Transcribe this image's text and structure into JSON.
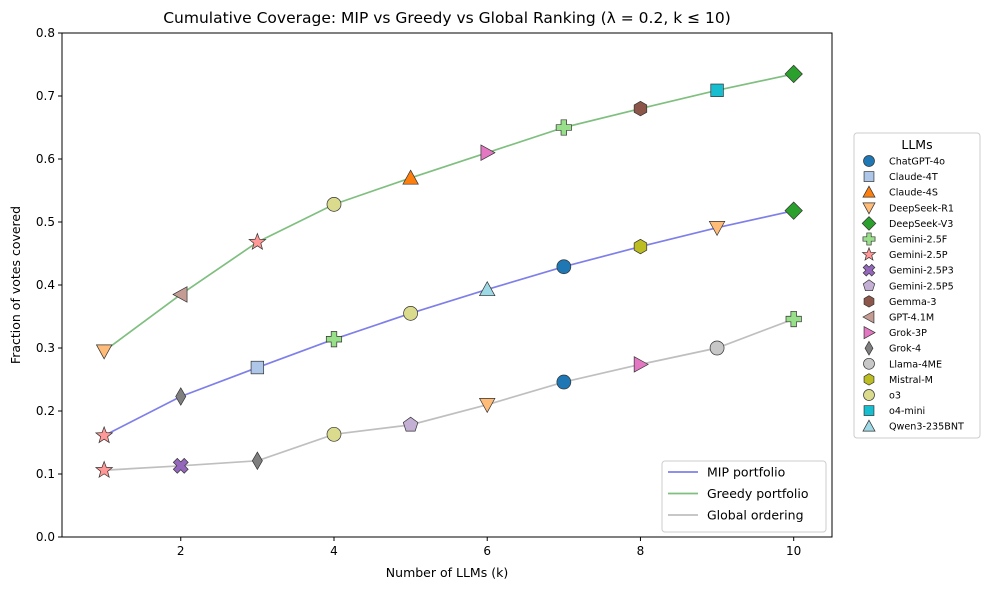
{
  "chart_data": {
    "type": "line",
    "title": "Cumulative Coverage: MIP vs Greedy vs Global Ranking (λ = 0.2, k ≤ 10)",
    "xlabel": "Number of LLMs (k)",
    "ylabel": "Fraction of votes covered",
    "xlim": [
      0.45,
      10.5
    ],
    "ylim": [
      0.0,
      0.8
    ],
    "xticks": [
      2,
      4,
      6,
      8,
      10
    ],
    "yticks": [
      0.0,
      0.1,
      0.2,
      0.3,
      0.4,
      0.5,
      0.6,
      0.7,
      0.8
    ],
    "ytick_labels": [
      "0.0",
      "0.1",
      "0.2",
      "0.3",
      "0.4",
      "0.5",
      "0.6",
      "0.7",
      "0.8"
    ],
    "grid": false,
    "series": [
      {
        "name": "MIP portfolio",
        "color": "#7f7fea",
        "x": [
          1,
          2,
          3,
          4,
          5,
          6,
          7,
          8,
          9,
          10
        ],
        "y": [
          0.161,
          0.223,
          0.269,
          0.314,
          0.355,
          0.393,
          0.429,
          0.461,
          0.491,
          0.518
        ],
        "models": [
          "Gemini-2.5P",
          "Grok-4",
          "Claude-4T",
          "Gemini-2.5F",
          "o3",
          "Qwen3-235BNT",
          "ChatGPT-4o",
          "Mistral-M",
          "DeepSeek-R1",
          "DeepSeek-V3"
        ]
      },
      {
        "name": "Greedy portfolio",
        "color": "#7fbf7f",
        "x": [
          1,
          2,
          3,
          4,
          5,
          6,
          7,
          8,
          9,
          10
        ],
        "y": [
          0.295,
          0.385,
          0.468,
          0.528,
          0.57,
          0.61,
          0.65,
          0.68,
          0.709,
          0.735
        ],
        "models": [
          "DeepSeek-R1",
          "GPT-4.1M",
          "Gemini-2.5P",
          "o3",
          "Claude-4S",
          "Grok-3P",
          "Gemini-2.5F",
          "Gemma-3",
          "o4-mini",
          "DeepSeek-V3"
        ]
      },
      {
        "name": "Global ordering",
        "color": "#bfbfbf",
        "x": [
          1,
          2,
          3,
          4,
          5,
          6,
          7,
          8,
          9,
          10
        ],
        "y": [
          0.106,
          0.113,
          0.121,
          0.163,
          0.178,
          0.21,
          0.246,
          0.274,
          0.3,
          0.346
        ],
        "models": [
          "Gemini-2.5P",
          "Gemini-2.5P3",
          "Grok-4",
          "o3",
          "Gemini-2.5P5",
          "DeepSeek-R1",
          "ChatGPT-4o",
          "Grok-3P",
          "Llama-4ME",
          "Gemini-2.5F"
        ]
      }
    ],
    "series_legend_placement": "lower-right",
    "llm_legend": {
      "title": "LLMs",
      "placement": "outside-right",
      "items": [
        {
          "name": "ChatGPT-4o",
          "color": "#1f77b4",
          "marker": "circle"
        },
        {
          "name": "Claude-4T",
          "color": "#aec7e8",
          "marker": "square"
        },
        {
          "name": "Claude-4S",
          "color": "#ff7f0e",
          "marker": "triangle-up"
        },
        {
          "name": "DeepSeek-R1",
          "color": "#ffbb78",
          "marker": "triangle-down"
        },
        {
          "name": "DeepSeek-V3",
          "color": "#2ca02c",
          "marker": "diamond"
        },
        {
          "name": "Gemini-2.5F",
          "color": "#98df8a",
          "marker": "plus"
        },
        {
          "name": "Gemini-2.5P",
          "color": "#ff9896",
          "marker": "star"
        },
        {
          "name": "Gemini-2.5P3",
          "color": "#9467bd",
          "marker": "x"
        },
        {
          "name": "Gemini-2.5P5",
          "color": "#c5b0d5",
          "marker": "pentagon"
        },
        {
          "name": "Gemma-3",
          "color": "#8c564b",
          "marker": "hexagon"
        },
        {
          "name": "GPT-4.1M",
          "color": "#c49c94",
          "marker": "triangle-left"
        },
        {
          "name": "Grok-3P",
          "color": "#e377c2",
          "marker": "triangle-right"
        },
        {
          "name": "Grok-4",
          "color": "#7f7f7f",
          "marker": "thin-diamond"
        },
        {
          "name": "Llama-4ME",
          "color": "#c7c7c7",
          "marker": "circle"
        },
        {
          "name": "Mistral-M",
          "color": "#bcbd22",
          "marker": "hexagon"
        },
        {
          "name": "o3",
          "color": "#dbdb8d",
          "marker": "circle"
        },
        {
          "name": "o4-mini",
          "color": "#17becf",
          "marker": "square"
        },
        {
          "name": "Qwen3-235BNT",
          "color": "#9edae5",
          "marker": "triangle-up"
        }
      ]
    }
  }
}
